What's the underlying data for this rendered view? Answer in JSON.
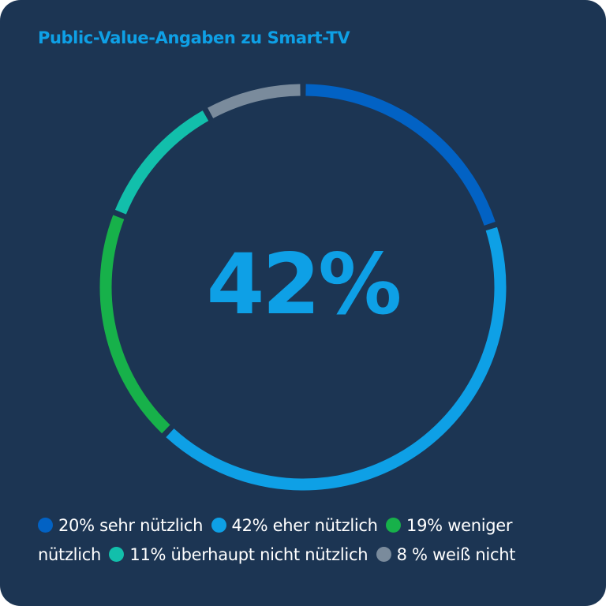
{
  "title": "Public-Value-Angaben zu Smart-TV",
  "center_label": "42%",
  "legend": [
    {
      "text": "20% sehr nützlich",
      "color": "#0262c4"
    },
    {
      "text": "42% eher nützlich",
      "color": "#0ea0e6"
    },
    {
      "text": "19% weniger nützlich",
      "color": "#17b14a"
    },
    {
      "text": "11% überhaupt nicht nützlich",
      "color": "#12bfab"
    },
    {
      "text": "8 % weiß nicht",
      "color": "#7a8b9c"
    }
  ],
  "chart_data": {
    "type": "pie",
    "title": "Public-Value-Angaben zu Smart-TV",
    "categories": [
      "sehr nützlich",
      "eher nützlich",
      "weniger nützlich",
      "überhaupt nicht nützlich",
      "weiß nicht"
    ],
    "values": [
      20,
      42,
      19,
      11,
      8
    ],
    "unit": "%",
    "colors": [
      "#0262c4",
      "#0ea0e6",
      "#17b14a",
      "#12bfab",
      "#7a8b9c"
    ],
    "highlight": "42%",
    "legend": "bottom"
  }
}
